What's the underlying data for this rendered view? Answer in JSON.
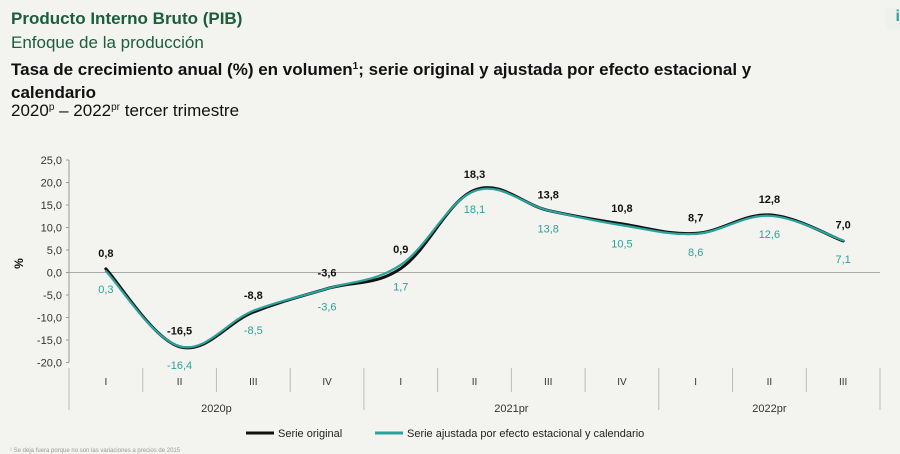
{
  "header": {
    "title": "Producto Interno Bruto (PIB)",
    "subtitle": "Enfoque de la producción",
    "chart_title_main": "Tasa de crecimiento anual (%) en volumen",
    "chart_title_sup": "1",
    "chart_title_rest": "; serie original y ajustada por efecto estacional y calendario",
    "period_start": "2020",
    "period_start_sup": "p",
    "period_sep": " – ",
    "period_end": "2022",
    "period_end_sup": "pr",
    "period_rest": " tercer trimestre",
    "corner_icon": "i"
  },
  "footnote": "¹ Se deja fuera porque no son las variaciones a precios de 2015",
  "colors": {
    "original": "#111111",
    "adjusted": "#2aa39b",
    "title": "#1b5e3a"
  },
  "chart_data": {
    "type": "line",
    "ylabel": "%",
    "ylim": [
      -20,
      25
    ],
    "yticks": [
      "25,0",
      "20,0",
      "15,0",
      "10,0",
      "5,0",
      "0,0",
      "-5,0",
      "-10,0",
      "-15,0",
      "-20,0"
    ],
    "ytick_values": [
      25,
      20,
      15,
      10,
      5,
      0,
      -5,
      -10,
      -15,
      -20
    ],
    "categories": [
      "I",
      "II",
      "III",
      "IV",
      "I",
      "II",
      "III",
      "IV",
      "I",
      "II",
      "III"
    ],
    "years": [
      {
        "label": "2020p",
        "span": 4
      },
      {
        "label": "2021pr",
        "span": 4
      },
      {
        "label": "2022pr",
        "span": 3
      }
    ],
    "series": [
      {
        "name": "Serie original",
        "values": [
          0.8,
          -16.5,
          -8.8,
          -3.6,
          0.9,
          18.3,
          13.8,
          10.8,
          8.7,
          12.8,
          7.0
        ],
        "labels": [
          "0,8",
          "-16,5",
          "-8,8",
          "-3,6",
          "0,9",
          "18,3",
          "13,8",
          "10,8",
          "8,7",
          "12,8",
          "7,0"
        ]
      },
      {
        "name": "Serie ajustada por efecto estacional y calendario",
        "values": [
          0.3,
          -16.4,
          -8.5,
          -3.6,
          1.7,
          18.1,
          13.8,
          10.5,
          8.6,
          12.6,
          7.1
        ],
        "labels": [
          "0,3",
          "-16,4",
          "-8,5",
          "-3,6",
          "1,7",
          "18,1",
          "13,8",
          "10,5",
          "8,6",
          "12,6",
          "7,1"
        ]
      }
    ],
    "legend_position": "bottom-center",
    "grid": false
  }
}
